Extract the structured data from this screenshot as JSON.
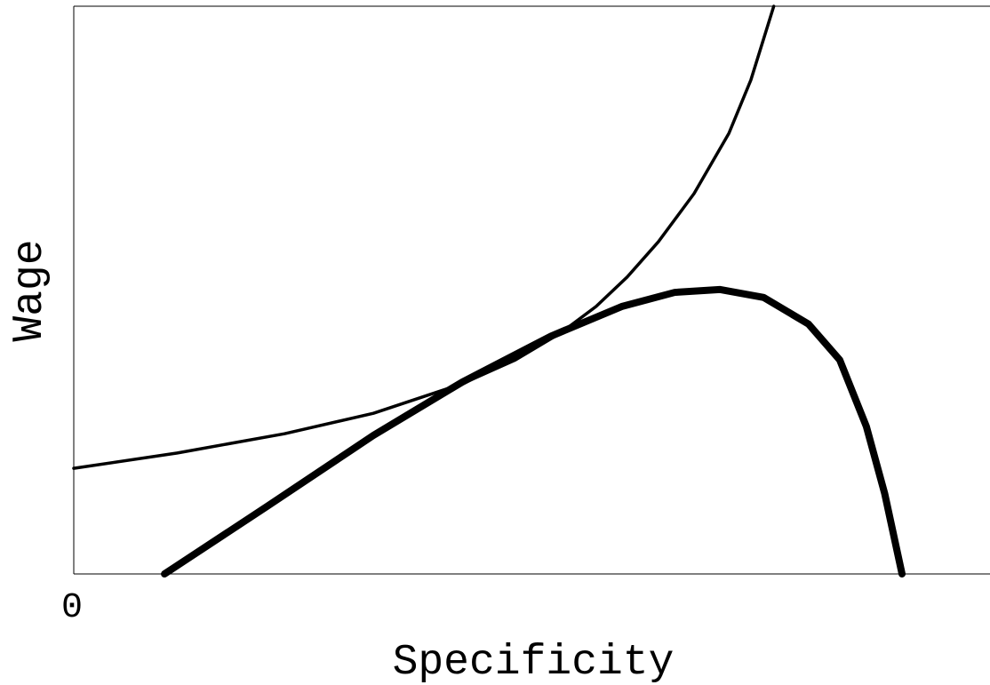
{
  "chart_data": {
    "type": "line",
    "xlabel": "Specificity",
    "ylabel": "Wage",
    "xlim": [
      0,
      1
    ],
    "ylim": [
      0,
      1
    ],
    "xticks": [
      0
    ],
    "series": [
      {
        "color": "#000000",
        "x": [
          0,
          0.113,
          0.23,
          0.327,
          0.424,
          0.482,
          0.531,
          0.57,
          0.604,
          0.638,
          0.677,
          0.715,
          0.739,
          0.764
        ],
        "values": [
          0.186,
          0.213,
          0.247,
          0.283,
          0.335,
          0.377,
          0.424,
          0.471,
          0.523,
          0.585,
          0.67,
          0.776,
          0.87,
          1.0
        ]
      },
      {
        "color": "#000000",
        "x": [
          0.099,
          0.211,
          0.327,
          0.424,
          0.521,
          0.598,
          0.656,
          0.705,
          0.753,
          0.802,
          0.836,
          0.865,
          0.885,
          0.904
        ],
        "values": [
          0,
          0.119,
          0.244,
          0.338,
          0.419,
          0.471,
          0.496,
          0.501,
          0.487,
          0.44,
          0.377,
          0.26,
          0.142,
          0
        ]
      }
    ]
  }
}
